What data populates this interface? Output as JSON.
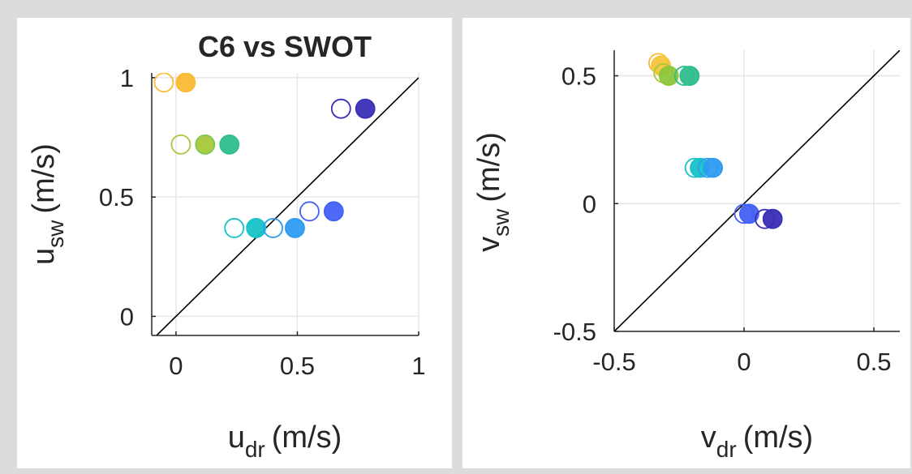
{
  "chart_data": [
    {
      "type": "scatter",
      "title": "C6 vs SWOT",
      "xlabel": {
        "base": "u",
        "sub": "dr",
        "unit": "(m/s)"
      },
      "ylabel": {
        "base": "u",
        "sub": "sw",
        "unit": "(m/s)"
      },
      "xlim": [
        -0.1,
        1.0
      ],
      "ylim": [
        -0.08,
        1.02
      ],
      "xticks": [
        0,
        0.5,
        1
      ],
      "xtick_labels": [
        "0",
        "0.5",
        "1"
      ],
      "yticks": [
        0,
        0.5,
        1
      ],
      "ytick_labels": [
        "0",
        "0.5",
        "1"
      ],
      "grid": true,
      "identity_line": true,
      "points": [
        {
          "x": -0.05,
          "y": 0.98,
          "color": "#fbbb32",
          "filled": false
        },
        {
          "x": 0.04,
          "y": 0.98,
          "color": "#fbbb32",
          "filled": true
        },
        {
          "x": 0.02,
          "y": 0.72,
          "color": "#a8c83a",
          "filled": false
        },
        {
          "x": 0.12,
          "y": 0.72,
          "color": "#a8c83a",
          "filled": true
        },
        {
          "x": 0.12,
          "y": 0.72,
          "color": "#7cc854",
          "filled": false
        },
        {
          "x": 0.22,
          "y": 0.72,
          "color": "#2ebe8c",
          "filled": true
        },
        {
          "x": 0.24,
          "y": 0.37,
          "color": "#17c3c8",
          "filled": false
        },
        {
          "x": 0.33,
          "y": 0.37,
          "color": "#17c3c8",
          "filled": true
        },
        {
          "x": 0.4,
          "y": 0.37,
          "color": "#2e9cf0",
          "filled": false
        },
        {
          "x": 0.49,
          "y": 0.37,
          "color": "#2e9cf0",
          "filled": true
        },
        {
          "x": 0.55,
          "y": 0.44,
          "color": "#4361f6",
          "filled": false
        },
        {
          "x": 0.65,
          "y": 0.44,
          "color": "#4361f6",
          "filled": true
        },
        {
          "x": 0.68,
          "y": 0.87,
          "color": "#3a2fb5",
          "filled": false
        },
        {
          "x": 0.78,
          "y": 0.87,
          "color": "#3a2fb5",
          "filled": true
        }
      ]
    },
    {
      "type": "scatter",
      "title": "",
      "xlabel": {
        "base": "v",
        "sub": "dr",
        "unit": "(m/s)"
      },
      "ylabel": {
        "base": "v",
        "sub": "sw",
        "unit": "(m/s)"
      },
      "xlim": [
        -0.5,
        0.6
      ],
      "ylim": [
        -0.5,
        0.6
      ],
      "xticks": [
        -0.5,
        0,
        0.5
      ],
      "xtick_labels": [
        "-0.5",
        "0",
        "0.5"
      ],
      "yticks": [
        -0.5,
        0,
        0.5
      ],
      "ytick_labels": [
        "-0.5",
        "0",
        "0.5"
      ],
      "grid": true,
      "identity_line": true,
      "points": [
        {
          "x": -0.33,
          "y": 0.55,
          "color": "#fbbb32",
          "filled": false
        },
        {
          "x": -0.32,
          "y": 0.54,
          "color": "#f5c53a",
          "filled": true
        },
        {
          "x": -0.31,
          "y": 0.51,
          "color": "#a8c83a",
          "filled": false
        },
        {
          "x": -0.29,
          "y": 0.5,
          "color": "#8ec63c",
          "filled": true
        },
        {
          "x": -0.23,
          "y": 0.5,
          "color": "#2ebe8c",
          "filled": false
        },
        {
          "x": -0.21,
          "y": 0.5,
          "color": "#2ebe8c",
          "filled": true
        },
        {
          "x": -0.19,
          "y": 0.14,
          "color": "#17c3c8",
          "filled": false
        },
        {
          "x": -0.17,
          "y": 0.14,
          "color": "#17c3c8",
          "filled": true
        },
        {
          "x": -0.14,
          "y": 0.14,
          "color": "#2e9cf0",
          "filled": false
        },
        {
          "x": -0.12,
          "y": 0.14,
          "color": "#2e9cf0",
          "filled": true
        },
        {
          "x": 0.0,
          "y": -0.04,
          "color": "#4361f6",
          "filled": false
        },
        {
          "x": 0.02,
          "y": -0.04,
          "color": "#4361f6",
          "filled": true
        },
        {
          "x": 0.08,
          "y": -0.06,
          "color": "#3a2fb5",
          "filled": false
        },
        {
          "x": 0.11,
          "y": -0.06,
          "color": "#3a2fb5",
          "filled": true
        }
      ]
    }
  ]
}
